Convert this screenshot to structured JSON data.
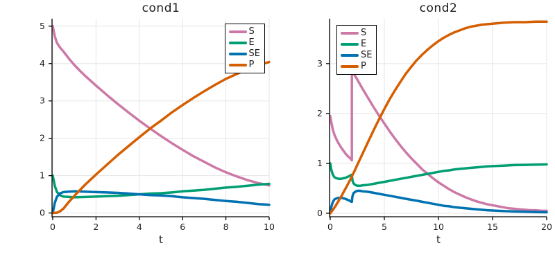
{
  "styles": {
    "background": "#FFFFFF",
    "grid_color": "#E5E5E5",
    "axis_color": "#000000",
    "tick_label_color": "#1c1c1c",
    "series_colors": {
      "S": "#CC79A7",
      "E": "#009E73",
      "SE": "#0072B2",
      "P": "#D55E00"
    }
  },
  "chart_data": [
    {
      "type": "line",
      "title": "cond1",
      "xlabel": "t",
      "xlim": [
        0,
        10
      ],
      "ylim": [
        -0.1,
        5.2
      ],
      "xticks": [
        0,
        2,
        4,
        6,
        8,
        10
      ],
      "yticks": [
        0,
        1,
        2,
        3,
        4,
        5
      ],
      "grid": true,
      "legend_position": "top-right",
      "series": [
        {
          "name": "S",
          "color": "#CC79A7",
          "x": [
            0,
            0.1,
            0.2,
            0.35,
            0.5,
            0.75,
            1,
            1.25,
            1.5,
            2,
            2.5,
            3,
            3.5,
            4,
            4.5,
            5,
            5.5,
            6,
            6.5,
            7,
            7.5,
            8,
            8.5,
            9,
            9.5,
            10
          ],
          "y": [
            5,
            4.72,
            4.55,
            4.42,
            4.32,
            4.13,
            3.96,
            3.81,
            3.67,
            3.41,
            3.16,
            2.92,
            2.69,
            2.47,
            2.26,
            2.06,
            1.87,
            1.69,
            1.52,
            1.37,
            1.22,
            1.09,
            0.98,
            0.88,
            0.8,
            0.74
          ]
        },
        {
          "name": "E",
          "color": "#009E73",
          "x": [
            0,
            0.1,
            0.2,
            0.35,
            0.5,
            0.75,
            1,
            1.5,
            2,
            2.5,
            3,
            3.5,
            4,
            4.5,
            5,
            5.5,
            6,
            6.5,
            7,
            7.5,
            8,
            8.5,
            9,
            9.5,
            10
          ],
          "y": [
            1,
            0.72,
            0.56,
            0.47,
            0.44,
            0.43,
            0.42,
            0.43,
            0.44,
            0.45,
            0.46,
            0.48,
            0.5,
            0.52,
            0.53,
            0.55,
            0.58,
            0.6,
            0.62,
            0.65,
            0.68,
            0.7,
            0.73,
            0.76,
            0.78
          ]
        },
        {
          "name": "SE",
          "color": "#0072B2",
          "x": [
            0,
            0.1,
            0.2,
            0.35,
            0.5,
            0.75,
            1,
            1.5,
            2,
            2.5,
            3,
            3.5,
            4,
            4.5,
            5,
            5.5,
            6,
            6.5,
            7,
            7.5,
            8,
            8.5,
            9,
            9.5,
            10
          ],
          "y": [
            0,
            0.28,
            0.44,
            0.53,
            0.56,
            0.57,
            0.58,
            0.57,
            0.56,
            0.55,
            0.54,
            0.52,
            0.5,
            0.48,
            0.47,
            0.45,
            0.42,
            0.4,
            0.38,
            0.35,
            0.32,
            0.3,
            0.27,
            0.24,
            0.22
          ]
        },
        {
          "name": "P",
          "color": "#D55E00",
          "x": [
            0,
            0.2,
            0.35,
            0.5,
            0.75,
            1,
            1.5,
            2,
            2.5,
            3,
            3.5,
            4,
            4.5,
            5,
            5.5,
            6,
            6.5,
            7,
            7.5,
            8,
            8.5,
            9,
            9.5,
            10
          ],
          "y": [
            0,
            0.01,
            0.05,
            0.12,
            0.3,
            0.46,
            0.76,
            1.03,
            1.29,
            1.55,
            1.79,
            2.03,
            2.26,
            2.47,
            2.69,
            2.89,
            3.08,
            3.26,
            3.43,
            3.59,
            3.72,
            3.85,
            3.96,
            4.04
          ]
        }
      ]
    },
    {
      "type": "line",
      "title": "cond2",
      "xlabel": "t",
      "xlim": [
        0,
        20
      ],
      "ylim": [
        -0.07,
        3.9
      ],
      "xticks": [
        0,
        5,
        10,
        15,
        20
      ],
      "yticks": [
        0,
        1,
        2,
        3
      ],
      "grid": true,
      "legend_position": "top-left",
      "series": [
        {
          "name": "S",
          "color": "#CC79A7",
          "x": [
            0,
            0.1,
            0.25,
            0.4,
            0.6,
            0.8,
            1,
            1.2,
            1.4,
            1.6,
            1.8,
            1.95,
            2,
            2,
            2.2,
            2.5,
            3,
            3.5,
            4,
            4.5,
            5,
            5.5,
            6,
            6.5,
            7,
            7.5,
            8,
            8.5,
            9,
            9.5,
            10,
            10.5,
            11,
            11.5,
            12,
            12.5,
            13,
            13.5,
            14,
            14.5,
            15,
            15.5,
            16,
            16.5,
            17,
            17.5,
            18,
            18.5,
            19,
            19.5,
            20
          ],
          "y": [
            1.95,
            1.82,
            1.67,
            1.57,
            1.47,
            1.39,
            1.32,
            1.26,
            1.2,
            1.15,
            1.11,
            1.08,
            1.06,
            2.86,
            2.79,
            2.68,
            2.49,
            2.31,
            2.13,
            1.96,
            1.8,
            1.64,
            1.49,
            1.35,
            1.22,
            1.1,
            0.99,
            0.88,
            0.79,
            0.7,
            0.62,
            0.55,
            0.48,
            0.42,
            0.37,
            0.32,
            0.28,
            0.24,
            0.21,
            0.18,
            0.16,
            0.14,
            0.12,
            0.1,
            0.09,
            0.08,
            0.07,
            0.06,
            0.06,
            0.05,
            0.05
          ]
        },
        {
          "name": "E",
          "color": "#009E73",
          "x": [
            0,
            0.1,
            0.25,
            0.4,
            0.6,
            0.8,
            1,
            1.2,
            1.4,
            1.6,
            1.8,
            1.95,
            2,
            2.05,
            2.15,
            2.3,
            2.5,
            2.75,
            3,
            3.5,
            4,
            4.5,
            5,
            5.5,
            6,
            6.5,
            7,
            7.5,
            8,
            8.5,
            9,
            9.5,
            10,
            10.5,
            11,
            11.5,
            12,
            12.5,
            13,
            13.5,
            14,
            14.5,
            15,
            16,
            17,
            18,
            19,
            20
          ],
          "y": [
            1,
            0.87,
            0.77,
            0.72,
            0.7,
            0.69,
            0.69,
            0.7,
            0.71,
            0.73,
            0.75,
            0.77,
            0.77,
            0.66,
            0.6,
            0.57,
            0.55,
            0.55,
            0.56,
            0.57,
            0.59,
            0.61,
            0.63,
            0.65,
            0.67,
            0.69,
            0.71,
            0.73,
            0.75,
            0.77,
            0.79,
            0.81,
            0.83,
            0.85,
            0.86,
            0.88,
            0.89,
            0.9,
            0.91,
            0.92,
            0.93,
            0.94,
            0.945,
            0.955,
            0.965,
            0.97,
            0.975,
            0.98
          ]
        },
        {
          "name": "SE",
          "color": "#0072B2",
          "x": [
            0,
            0.1,
            0.25,
            0.4,
            0.6,
            0.8,
            1,
            1.2,
            1.4,
            1.6,
            1.8,
            1.95,
            2,
            2.05,
            2.15,
            2.3,
            2.5,
            2.75,
            3,
            3.5,
            4,
            4.5,
            5,
            5.5,
            6,
            6.5,
            7,
            7.5,
            8,
            8.5,
            9,
            9.5,
            10,
            10.5,
            11,
            11.5,
            12,
            12.5,
            13,
            13.5,
            14,
            14.5,
            15,
            16,
            17,
            18,
            19,
            20
          ],
          "y": [
            0,
            0.13,
            0.23,
            0.28,
            0.3,
            0.31,
            0.31,
            0.3,
            0.29,
            0.27,
            0.25,
            0.23,
            0.23,
            0.34,
            0.4,
            0.43,
            0.45,
            0.45,
            0.44,
            0.43,
            0.41,
            0.39,
            0.37,
            0.35,
            0.33,
            0.31,
            0.29,
            0.27,
            0.25,
            0.23,
            0.21,
            0.19,
            0.17,
            0.15,
            0.14,
            0.12,
            0.11,
            0.1,
            0.09,
            0.08,
            0.07,
            0.06,
            0.055,
            0.045,
            0.035,
            0.03,
            0.025,
            0.02
          ]
        },
        {
          "name": "P",
          "color": "#D55E00",
          "x": [
            0,
            0.25,
            0.5,
            0.75,
            1,
            1.25,
            1.5,
            1.75,
            2,
            2.25,
            2.5,
            3,
            3.5,
            4,
            4.5,
            5,
            5.5,
            6,
            6.5,
            7,
            7.5,
            8,
            8.5,
            9,
            9.5,
            10,
            10.5,
            11,
            11.5,
            12,
            12.5,
            13,
            13.5,
            14,
            15,
            16,
            17,
            18,
            19,
            20
          ],
          "y": [
            0,
            0.07,
            0.15,
            0.24,
            0.33,
            0.43,
            0.53,
            0.63,
            0.74,
            0.85,
            0.97,
            1.2,
            1.43,
            1.66,
            1.88,
            2.09,
            2.29,
            2.47,
            2.64,
            2.8,
            2.94,
            3.07,
            3.18,
            3.28,
            3.37,
            3.45,
            3.52,
            3.58,
            3.63,
            3.67,
            3.71,
            3.74,
            3.76,
            3.78,
            3.8,
            3.82,
            3.83,
            3.83,
            3.84,
            3.84
          ]
        }
      ]
    }
  ]
}
